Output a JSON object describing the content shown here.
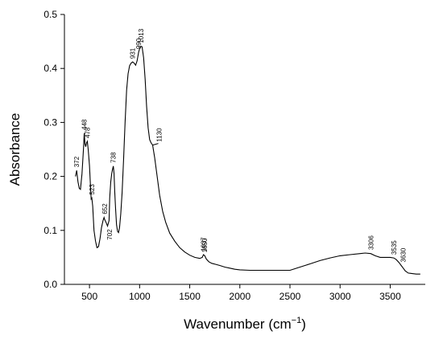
{
  "chart_data": {
    "type": "line",
    "xlabel_main": "Wavenumber (cm",
    "xlabel_sup": "−1",
    "xlabel_close": ")",
    "ylabel": "Absorbance",
    "xlim": [
      250,
      3850
    ],
    "ylim": [
      0,
      0.5
    ],
    "x_ticks": [
      500,
      1000,
      1500,
      2000,
      2500,
      3000,
      3500
    ],
    "y_ticks": [
      0.0,
      0.1,
      0.2,
      0.3,
      0.4,
      0.5
    ],
    "x_tick_labels": [
      "500",
      "1000",
      "1500",
      "2000",
      "2500",
      "3000",
      "3500"
    ],
    "y_tick_labels": [
      "0.0",
      "0.1",
      "0.2",
      "0.3",
      "0.4",
      "0.5"
    ],
    "grid": false,
    "legend": "none",
    "series": [
      {
        "x": [
          360,
          372,
          385,
          398,
          410,
          425,
          440,
          448,
          455,
          462,
          470,
          478,
          487,
          500,
          510,
          517,
          523,
          532,
          545,
          560,
          575,
          590,
          605,
          620,
          635,
          645,
          652,
          665,
          680,
          695,
          702,
          712,
          722,
          730,
          738,
          745,
          752,
          760,
          770,
          780,
          790,
          800,
          812,
          825,
          840,
          855,
          870,
          885,
          900,
          915,
          931,
          945,
          960,
          975,
          990,
          1002,
          1013,
          1025,
          1040,
          1055,
          1070,
          1085,
          1100,
          1115,
          1130,
          1150,
          1175,
          1200,
          1230,
          1260,
          1300,
          1350,
          1400,
          1450,
          1500,
          1550,
          1600,
          1625,
          1637,
          1650,
          1665,
          1690,
          1720,
          1760,
          1800,
          1850,
          1900,
          1950,
          2000,
          2100,
          2200,
          2300,
          2400,
          2500,
          2550,
          2600,
          2700,
          2800,
          2900,
          3000,
          3100,
          3200,
          3250,
          3306,
          3350,
          3400,
          3450,
          3500,
          3535,
          3560,
          3590,
          3610,
          3630,
          3650,
          3680,
          3720,
          3760,
          3800
        ],
        "y": [
          0.2,
          0.211,
          0.19,
          0.178,
          0.176,
          0.205,
          0.25,
          0.28,
          0.26,
          0.255,
          0.262,
          0.265,
          0.25,
          0.22,
          0.18,
          0.158,
          0.16,
          0.145,
          0.1,
          0.08,
          0.068,
          0.07,
          0.085,
          0.105,
          0.118,
          0.124,
          0.12,
          0.115,
          0.108,
          0.118,
          0.16,
          0.19,
          0.205,
          0.213,
          0.219,
          0.205,
          0.17,
          0.14,
          0.11,
          0.098,
          0.096,
          0.105,
          0.13,
          0.17,
          0.23,
          0.3,
          0.36,
          0.39,
          0.405,
          0.41,
          0.412,
          0.41,
          0.406,
          0.414,
          0.43,
          0.438,
          0.441,
          0.44,
          0.42,
          0.38,
          0.33,
          0.29,
          0.268,
          0.262,
          0.258,
          0.235,
          0.2,
          0.165,
          0.135,
          0.115,
          0.095,
          0.08,
          0.068,
          0.06,
          0.054,
          0.05,
          0.048,
          0.05,
          0.055,
          0.053,
          0.047,
          0.042,
          0.039,
          0.037,
          0.035,
          0.032,
          0.03,
          0.028,
          0.027,
          0.026,
          0.026,
          0.026,
          0.026,
          0.026,
          0.029,
          0.032,
          0.038,
          0.044,
          0.049,
          0.053,
          0.055,
          0.057,
          0.058,
          0.057,
          0.053,
          0.05,
          0.05,
          0.05,
          0.049,
          0.046,
          0.04,
          0.035,
          0.03,
          0.025,
          0.021,
          0.02,
          0.019,
          0.019
        ]
      }
    ],
    "annotations": [
      {
        "text": "372",
        "x": 372,
        "y": 0.211
      },
      {
        "text": "448",
        "x": 448,
        "y": 0.28
      },
      {
        "text": "478",
        "x": 478,
        "y": 0.265
      },
      {
        "text": "523",
        "x": 523,
        "y": 0.16
      },
      {
        "text": "652",
        "x": 652,
        "y": 0.124
      },
      {
        "text": "702",
        "x": 702,
        "y": 0.118,
        "below": true
      },
      {
        "text": "738",
        "x": 738,
        "y": 0.219
      },
      {
        "text": "931",
        "x": 931,
        "y": 0.412
      },
      {
        "text": "990",
        "x": 990,
        "y": 0.43
      },
      {
        "text": "1013",
        "x": 1013,
        "y": 0.441
      },
      {
        "text": "1130",
        "x": 1130,
        "y": 0.258,
        "leader": true
      },
      {
        "text": "1637",
        "x": 1637,
        "y": 0.055
      },
      {
        "text": "1650",
        "x": 1650,
        "y": 0.053
      },
      {
        "text": "3306",
        "x": 3306,
        "y": 0.058
      },
      {
        "text": "3535",
        "x": 3535,
        "y": 0.049
      },
      {
        "text": "3630",
        "x": 3630,
        "y": 0.035
      }
    ]
  }
}
